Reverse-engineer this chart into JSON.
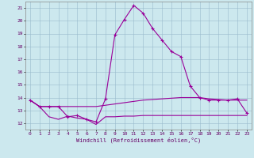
{
  "xlabel": "Windchill (Refroidissement éolien,°C)",
  "background_color": "#cce8ee",
  "grid_color": "#99bbcc",
  "line_color": "#990099",
  "x_ticks": [
    0,
    1,
    2,
    3,
    4,
    5,
    6,
    7,
    8,
    9,
    10,
    11,
    12,
    13,
    14,
    15,
    16,
    17,
    18,
    19,
    20,
    21,
    22,
    23
  ],
  "y_ticks": [
    12,
    13,
    14,
    15,
    16,
    17,
    18,
    19,
    20,
    21
  ],
  "ylim": [
    11.5,
    21.5
  ],
  "xlim": [
    -0.5,
    23.5
  ],
  "series": [
    {
      "x": [
        0,
        1,
        2,
        3,
        4,
        5,
        6,
        7,
        8,
        9,
        10,
        11,
        12,
        13,
        14,
        15,
        16,
        17,
        18,
        19,
        20,
        21,
        22,
        23
      ],
      "y": [
        13.8,
        13.3,
        13.3,
        13.3,
        13.3,
        13.3,
        13.3,
        13.3,
        13.4,
        13.5,
        13.6,
        13.7,
        13.8,
        13.85,
        13.9,
        13.95,
        14.0,
        14.0,
        14.0,
        13.9,
        13.85,
        13.8,
        13.8,
        13.8
      ],
      "marker": null,
      "linestyle": "-",
      "linewidth": 0.8
    },
    {
      "x": [
        0,
        1,
        2,
        3,
        4,
        5,
        6,
        7,
        8,
        9,
        10,
        11,
        12,
        13,
        14,
        15,
        16,
        17,
        18,
        19,
        20,
        21,
        22,
        23
      ],
      "y": [
        13.8,
        13.3,
        12.5,
        12.3,
        12.55,
        12.4,
        12.3,
        11.9,
        12.5,
        12.5,
        12.55,
        12.55,
        12.6,
        12.6,
        12.6,
        12.6,
        12.6,
        12.6,
        12.6,
        12.6,
        12.6,
        12.6,
        12.6,
        12.6
      ],
      "marker": null,
      "linestyle": "-",
      "linewidth": 0.8
    },
    {
      "x": [
        0,
        1,
        2,
        3,
        4,
        5,
        6,
        7,
        8,
        9,
        10,
        11,
        12,
        13,
        14,
        15,
        16,
        17,
        18,
        19,
        20,
        21,
        22,
        23
      ],
      "y": [
        13.8,
        13.3,
        13.3,
        13.3,
        12.5,
        12.6,
        12.3,
        12.1,
        13.9,
        18.9,
        20.1,
        21.2,
        20.6,
        19.4,
        18.5,
        17.6,
        17.2,
        14.9,
        14.0,
        13.8,
        13.8,
        13.8,
        13.9,
        12.8
      ],
      "marker": "+",
      "linestyle": "-",
      "linewidth": 0.8
    }
  ]
}
